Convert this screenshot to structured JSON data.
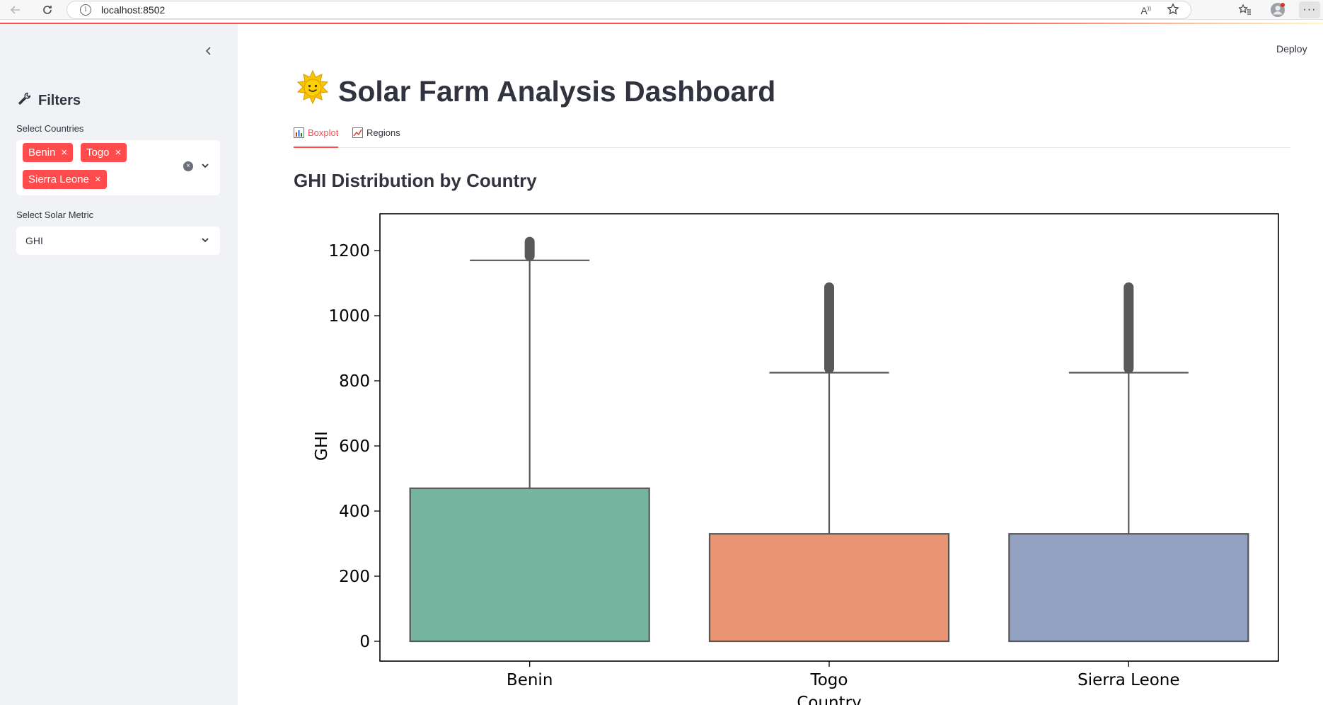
{
  "browser": {
    "url": "localhost:8502"
  },
  "sidebar": {
    "title": "Filters",
    "countries_label": "Select Countries",
    "selected_countries": [
      "Benin",
      "Togo",
      "Sierra Leone"
    ],
    "metric_label": "Select Solar Metric",
    "metric_value": "GHI"
  },
  "header": {
    "deploy_label": "Deploy",
    "title": "Solar Farm Analysis Dashboard"
  },
  "tabs": [
    {
      "label": "Boxplot",
      "active": true
    },
    {
      "label": "Regions",
      "active": false
    }
  ],
  "section_title": "GHI Distribution by Country",
  "colors": {
    "accent": "#ff4b4b",
    "benin": "#75b5a0",
    "togo": "#e99574",
    "sierra_leone": "#93a2c2"
  },
  "chart_data": {
    "type": "box",
    "categories": [
      "Benin",
      "Togo",
      "Sierra Leone"
    ],
    "xlabel": "Country",
    "ylabel": "GHI",
    "ylim": [
      -60,
      1300
    ],
    "yticks": [
      0,
      200,
      400,
      600,
      800,
      1000,
      1200
    ],
    "boxes": [
      {
        "name": "Benin",
        "min": 0,
        "q1": 0,
        "median": 0,
        "q3": 470,
        "whisker_high": 1170,
        "outliers_range": [
          1170,
          1240
        ]
      },
      {
        "name": "Togo",
        "min": 0,
        "q1": 0,
        "median": 0,
        "q3": 330,
        "whisker_high": 825,
        "outliers_range": [
          825,
          1100
        ]
      },
      {
        "name": "Sierra Leone",
        "min": 0,
        "q1": 0,
        "median": 0,
        "q3": 330,
        "whisker_high": 825,
        "outliers_range": [
          825,
          1100
        ]
      }
    ]
  }
}
